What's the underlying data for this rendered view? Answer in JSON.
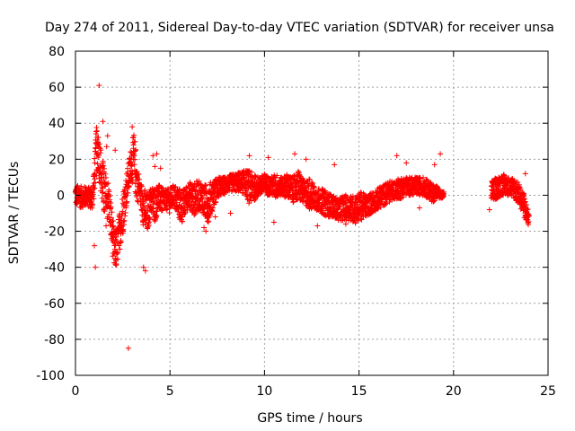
{
  "chart_data": {
    "type": "scatter",
    "title": "Day 274 of 2011, Sidereal Day-to-day VTEC variation (SDTVAR) for receiver unsa",
    "xlabel": "GPS time / hours",
    "ylabel": "SDTVAR / TECUs",
    "xlim": [
      0,
      25
    ],
    "ylim": [
      -100,
      80
    ],
    "xticks": [
      0,
      5,
      10,
      15,
      20,
      25
    ],
    "yticks": [
      -100,
      -80,
      -60,
      -40,
      -20,
      0,
      20,
      40,
      60,
      80
    ],
    "grid": true,
    "marker": "+",
    "color": "#ff0000",
    "series": [
      {
        "name": "SDTVAR",
        "envelope": [
          [
            0.0,
            -6,
            6
          ],
          [
            0.3,
            -7,
            5
          ],
          [
            0.6,
            -6,
            5
          ],
          [
            0.9,
            -8,
            4
          ],
          [
            1.1,
            10,
            38
          ],
          [
            1.2,
            15,
            37
          ],
          [
            1.3,
            5,
            30
          ],
          [
            1.45,
            -10,
            20
          ],
          [
            1.6,
            -18,
            12
          ],
          [
            1.75,
            -12,
            8
          ],
          [
            1.9,
            -28,
            -6
          ],
          [
            2.05,
            -42,
            -20
          ],
          [
            2.2,
            -40,
            -18
          ],
          [
            2.35,
            -30,
            -8
          ],
          [
            2.5,
            -22,
            2
          ],
          [
            2.65,
            -10,
            10
          ],
          [
            2.8,
            0,
            18
          ],
          [
            2.95,
            8,
            28
          ],
          [
            3.1,
            5,
            35
          ],
          [
            3.25,
            -5,
            20
          ],
          [
            3.4,
            -2,
            8
          ],
          [
            3.6,
            -18,
            5
          ],
          [
            3.8,
            -22,
            0
          ],
          [
            4.0,
            -10,
            5
          ],
          [
            4.2,
            -15,
            5
          ],
          [
            4.4,
            -8,
            6
          ],
          [
            4.6,
            -10,
            4
          ],
          [
            4.8,
            -8,
            3
          ],
          [
            5.0,
            -10,
            4
          ],
          [
            5.2,
            -6,
            6
          ],
          [
            5.4,
            -12,
            5
          ],
          [
            5.6,
            -16,
            3
          ],
          [
            5.8,
            -12,
            4
          ],
          [
            6.0,
            -6,
            8
          ],
          [
            6.2,
            -12,
            6
          ],
          [
            6.4,
            -10,
            8
          ],
          [
            6.6,
            -8,
            8
          ],
          [
            6.8,
            -12,
            6
          ],
          [
            7.0,
            -16,
            6
          ],
          [
            7.2,
            -10,
            8
          ],
          [
            7.5,
            -2,
            10
          ],
          [
            7.8,
            0,
            10
          ],
          [
            8.1,
            2,
            11
          ],
          [
            8.4,
            2,
            12
          ],
          [
            8.7,
            2,
            13
          ],
          [
            9.0,
            0,
            14
          ],
          [
            9.2,
            -5,
            14
          ],
          [
            9.4,
            -4,
            12
          ],
          [
            9.7,
            0,
            10
          ],
          [
            10.0,
            0,
            12
          ],
          [
            10.3,
            0,
            10
          ],
          [
            10.6,
            -2,
            12
          ],
          [
            10.9,
            0,
            10
          ],
          [
            11.2,
            -2,
            12
          ],
          [
            11.5,
            -4,
            10
          ],
          [
            11.8,
            -3,
            14
          ],
          [
            12.1,
            -5,
            8
          ],
          [
            12.4,
            -8,
            10
          ],
          [
            12.7,
            -8,
            4
          ],
          [
            13.0,
            -10,
            4
          ],
          [
            13.3,
            -12,
            2
          ],
          [
            13.6,
            -12,
            0
          ],
          [
            13.9,
            -14,
            -2
          ],
          [
            14.2,
            -14,
            0
          ],
          [
            14.5,
            -14,
            0
          ],
          [
            14.8,
            -16,
            0
          ],
          [
            15.1,
            -14,
            2
          ],
          [
            15.4,
            -12,
            0
          ],
          [
            15.7,
            -10,
            2
          ],
          [
            16.0,
            -8,
            4
          ],
          [
            16.3,
            -6,
            6
          ],
          [
            16.6,
            -4,
            8
          ],
          [
            16.9,
            -2,
            8
          ],
          [
            17.2,
            -2,
            10
          ],
          [
            17.5,
            0,
            10
          ],
          [
            17.8,
            0,
            10
          ],
          [
            18.1,
            0,
            10
          ],
          [
            18.4,
            0,
            10
          ],
          [
            18.7,
            -2,
            8
          ],
          [
            18.9,
            -4,
            6
          ],
          [
            19.1,
            -2,
            6
          ],
          [
            19.3,
            -2,
            2
          ],
          [
            19.5,
            -2,
            2
          ],
          [
            22.0,
            -4,
            8
          ],
          [
            22.3,
            -2,
            10
          ],
          [
            22.6,
            0,
            12
          ],
          [
            22.9,
            0,
            10
          ],
          [
            23.2,
            -2,
            10
          ],
          [
            23.5,
            -6,
            6
          ],
          [
            23.7,
            -12,
            2
          ],
          [
            23.9,
            -16,
            -6
          ],
          [
            24.0,
            -18,
            -10
          ]
        ],
        "outliers": [
          [
            1.25,
            61
          ],
          [
            1.45,
            41
          ],
          [
            1.0,
            -28
          ],
          [
            1.05,
            -40
          ],
          [
            2.8,
            -85
          ],
          [
            1.7,
            33
          ],
          [
            1.65,
            27
          ],
          [
            2.1,
            25
          ],
          [
            3.6,
            -40
          ],
          [
            3.7,
            -42
          ],
          [
            4.3,
            23
          ],
          [
            4.1,
            22
          ],
          [
            4.5,
            15
          ],
          [
            6.8,
            -18
          ],
          [
            6.9,
            -20
          ],
          [
            9.2,
            22
          ],
          [
            10.2,
            21
          ],
          [
            11.6,
            23
          ],
          [
            12.2,
            20
          ],
          [
            13.7,
            17
          ],
          [
            14.3,
            -16
          ],
          [
            17.0,
            22
          ],
          [
            17.5,
            18
          ],
          [
            19.3,
            23
          ],
          [
            19.0,
            17
          ],
          [
            18.2,
            -7
          ],
          [
            21.9,
            -8
          ],
          [
            23.8,
            12
          ],
          [
            4.2,
            16
          ],
          [
            3.0,
            38
          ],
          [
            8.2,
            -10
          ],
          [
            7.4,
            -12
          ],
          [
            10.5,
            -15
          ],
          [
            12.8,
            -17
          ]
        ]
      }
    ]
  }
}
